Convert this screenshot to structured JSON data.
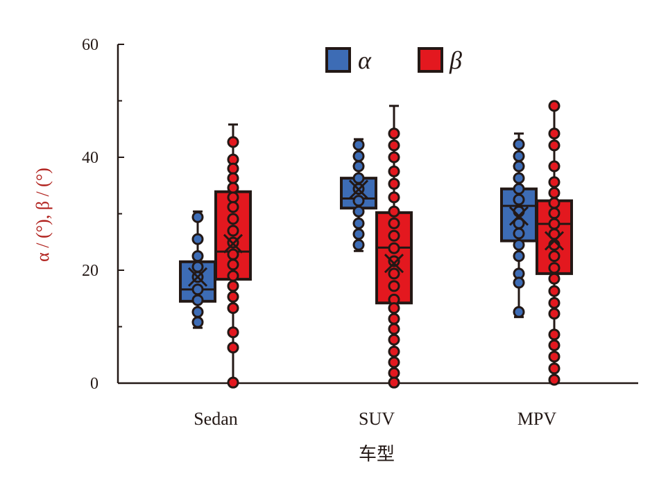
{
  "chart_data": {
    "type": "box",
    "title": "",
    "xlabel": "车型",
    "ylabel": "α / (°), β / (°)",
    "ylim": [
      0,
      60
    ],
    "yticks": [
      0,
      20,
      40,
      60
    ],
    "categories": [
      "Sedan",
      "SUV",
      "MPV"
    ],
    "legend": {
      "position": "top-center",
      "entries": [
        "α",
        "β"
      ]
    },
    "colors": {
      "alpha": "#3d6cb5",
      "beta": "#e3181f",
      "outline": "#231815"
    },
    "series": [
      {
        "name": "α",
        "boxes": [
          {
            "category": "Sedan",
            "whisker_low": 9.8,
            "q1": 14.5,
            "median": 16.6,
            "q3": 21.5,
            "whisker_high": 30.4,
            "mean": 18.8,
            "points": [
              29.4,
              25.5,
              22.5,
              20.6,
              18.8,
              16.6,
              14.7,
              12.6,
              10.8
            ]
          },
          {
            "category": "SUV",
            "whisker_low": 23.4,
            "q1": 31.0,
            "median": 32.7,
            "q3": 36.3,
            "whisker_high": 43.2,
            "mean": 34.3,
            "points": [
              42.2,
              40.2,
              38.4,
              36.3,
              34.4,
              32.3,
              30.4,
              28.3,
              26.4,
              24.5
            ]
          },
          {
            "category": "MPV",
            "whisker_low": 11.7,
            "q1": 25.2,
            "median": 31.4,
            "q3": 34.4,
            "whisker_high": 44.2,
            "mean": 29.6,
            "points": [
              42.3,
              40.2,
              38.4,
              36.3,
              34.4,
              32.5,
              30.4,
              28.3,
              26.5,
              24.5,
              22.5,
              19.4,
              17.8,
              12.6
            ]
          }
        ]
      },
      {
        "name": "β",
        "boxes": [
          {
            "category": "Sedan",
            "whisker_low": 0,
            "q1": 18.4,
            "median": 23.3,
            "q3": 33.9,
            "whisker_high": 45.8,
            "mean": 24.7,
            "points": [
              42.7,
              39.6,
              38.0,
              36.3,
              34.6,
              32.9,
              31.2,
              29.1,
              27.0,
              24.9,
              22.8,
              21.0,
              19.0,
              17.2,
              15.3,
              13.3,
              9.0,
              6.3,
              0.1
            ]
          },
          {
            "category": "SUV",
            "whisker_low": 0,
            "q1": 14.2,
            "median": 24.0,
            "q3": 30.2,
            "whisker_high": 49.1,
            "mean": 21.2,
            "points": [
              44.2,
              42.1,
              40.0,
              37.5,
              35.3,
              32.9,
              30.4,
              28.3,
              26.1,
              23.9,
              21.6,
              19.4,
              17.2,
              14.8,
              13.3,
              11.4,
              9.6,
              7.7,
              5.6,
              3.7,
              1.8,
              0.1
            ]
          },
          {
            "category": "MPV",
            "whisker_low": 0,
            "q1": 19.4,
            "median": 28.2,
            "q3": 32.3,
            "whisker_high": 49.1,
            "mean": 25.2,
            "points": [
              49.1,
              44.2,
              42.1,
              38.4,
              35.6,
              33.7,
              31.9,
              30.1,
              28.2,
              26.4,
              24.5,
              22.5,
              20.4,
              18.5,
              16.3,
              14.2,
              12.3,
              8.6,
              6.7,
              4.7,
              2.6,
              0.6
            ]
          }
        ]
      }
    ]
  }
}
